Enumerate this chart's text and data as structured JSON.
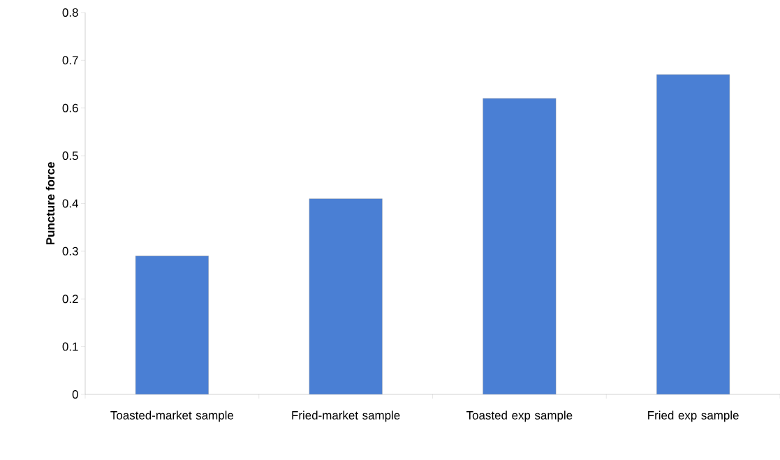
{
  "chart_data": {
    "type": "bar",
    "ylabel": "Puncture force",
    "categories": [
      "Toasted-market sample",
      "Fried-market sample",
      "Toasted exp sample",
      "Fried exp sample"
    ],
    "values": [
      0.29,
      0.41,
      0.62,
      0.67
    ],
    "color": "#4a7fd4",
    "ylim": [
      0,
      0.8
    ],
    "yticks": [
      0,
      0.1,
      0.2,
      0.3,
      0.4,
      0.5,
      0.6,
      0.7,
      0.8
    ],
    "grid": false
  }
}
